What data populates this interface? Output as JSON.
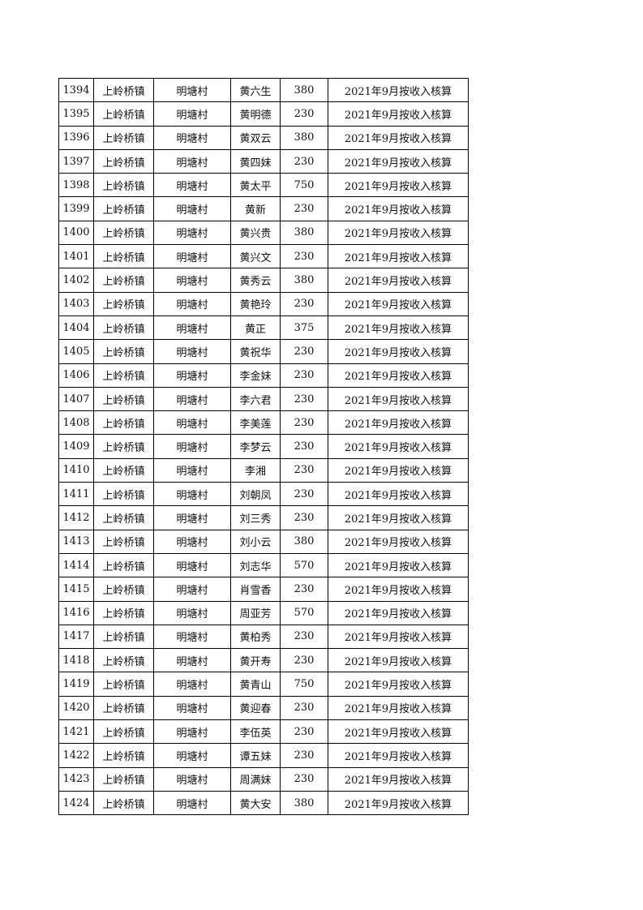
{
  "rows": [
    [
      "1394",
      "上岭桥镇",
      "明塘村",
      "黄六生",
      "380",
      "2021年9月按收入核算"
    ],
    [
      "1395",
      "上岭桥镇",
      "明塘村",
      "黄明德",
      "230",
      "2021年9月按收入核算"
    ],
    [
      "1396",
      "上岭桥镇",
      "明塘村",
      "黄双云",
      "380",
      "2021年9月按收入核算"
    ],
    [
      "1397",
      "上岭桥镇",
      "明塘村",
      "黄四妹",
      "230",
      "2021年9月按收入核算"
    ],
    [
      "1398",
      "上岭桥镇",
      "明塘村",
      "黄太平",
      "750",
      "2021年9月按收入核算"
    ],
    [
      "1399",
      "上岭桥镇",
      "明塘村",
      "黄新",
      "230",
      "2021年9月按收入核算"
    ],
    [
      "1400",
      "上岭桥镇",
      "明塘村",
      "黄兴贵",
      "380",
      "2021年9月按收入核算"
    ],
    [
      "1401",
      "上岭桥镇",
      "明塘村",
      "黄兴文",
      "230",
      "2021年9月按收入核算"
    ],
    [
      "1402",
      "上岭桥镇",
      "明塘村",
      "黄秀云",
      "380",
      "2021年9月按收入核算"
    ],
    [
      "1403",
      "上岭桥镇",
      "明塘村",
      "黄艳玲",
      "230",
      "2021年9月按收入核算"
    ],
    [
      "1404",
      "上岭桥镇",
      "明塘村",
      "黄正",
      "375",
      "2021年9月按收入核算"
    ],
    [
      "1405",
      "上岭桥镇",
      "明塘村",
      "黄祝华",
      "230",
      "2021年9月按收入核算"
    ],
    [
      "1406",
      "上岭桥镇",
      "明塘村",
      "李金妹",
      "230",
      "2021年9月按收入核算"
    ],
    [
      "1407",
      "上岭桥镇",
      "明塘村",
      "李六君",
      "230",
      "2021年9月按收入核算"
    ],
    [
      "1408",
      "上岭桥镇",
      "明塘村",
      "李美莲",
      "230",
      "2021年9月按收入核算"
    ],
    [
      "1409",
      "上岭桥镇",
      "明塘村",
      "李梦云",
      "230",
      "2021年9月按收入核算"
    ],
    [
      "1410",
      "上岭桥镇",
      "明塘村",
      "李湘",
      "230",
      "2021年9月按收入核算"
    ],
    [
      "1411",
      "上岭桥镇",
      "明塘村",
      "刘朝凤",
      "230",
      "2021年9月按收入核算"
    ],
    [
      "1412",
      "上岭桥镇",
      "明塘村",
      "刘三秀",
      "230",
      "2021年9月按收入核算"
    ],
    [
      "1413",
      "上岭桥镇",
      "明塘村",
      "刘小云",
      "380",
      "2021年9月按收入核算"
    ],
    [
      "1414",
      "上岭桥镇",
      "明塘村",
      "刘志华",
      "570",
      "2021年9月按收入核算"
    ],
    [
      "1415",
      "上岭桥镇",
      "明塘村",
      "肖雪香",
      "230",
      "2021年9月按收入核算"
    ],
    [
      "1416",
      "上岭桥镇",
      "明塘村",
      "周亚芳",
      "570",
      "2021年9月按收入核算"
    ],
    [
      "1417",
      "上岭桥镇",
      "明塘村",
      "黄柏秀",
      "230",
      "2021年9月按收入核算"
    ],
    [
      "1418",
      "上岭桥镇",
      "明塘村",
      "黄开寿",
      "230",
      "2021年9月按收入核算"
    ],
    [
      "1419",
      "上岭桥镇",
      "明塘村",
      "黄青山",
      "750",
      "2021年9月按收入核算"
    ],
    [
      "1420",
      "上岭桥镇",
      "明塘村",
      "黄迎春",
      "230",
      "2021年9月按收入核算"
    ],
    [
      "1421",
      "上岭桥镇",
      "明塘村",
      "李伍英",
      "230",
      "2021年9月按收入核算"
    ],
    [
      "1422",
      "上岭桥镇",
      "明塘村",
      "谭五妹",
      "230",
      "2021年9月按收入核算"
    ],
    [
      "1423",
      "上岭桥镇",
      "明塘村",
      "周满妹",
      "230",
      "2021年9月按收入核算"
    ],
    [
      "1424",
      "上岭桥镇",
      "明塘村",
      "黄大安",
      "380",
      "2021年9月按收入核算"
    ]
  ]
}
